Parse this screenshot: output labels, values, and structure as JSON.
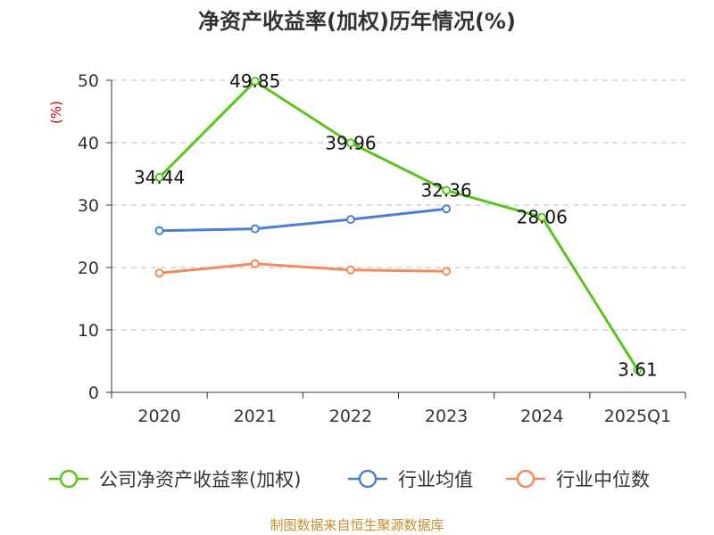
{
  "chart_data": {
    "type": "line",
    "title": "净资产收益率(加权)历年情况(%)",
    "ylabel": "(%)",
    "xlabel": "",
    "categories": [
      "2020",
      "2021",
      "2022",
      "2023",
      "2024",
      "2025Q1"
    ],
    "ylim": [
      0,
      50
    ],
    "yticks": [
      0,
      10,
      20,
      30,
      40,
      50
    ],
    "grid": true,
    "legend_position": "bottom",
    "series": [
      {
        "name": "公司净资产收益率(加权)",
        "color": "#5ac41e",
        "values": [
          34.44,
          49.85,
          39.96,
          32.36,
          28.06,
          3.61
        ],
        "labels": [
          "34.44",
          "49.85",
          "39.96",
          "32.36",
          "28.06",
          "3.61"
        ]
      },
      {
        "name": "行业均值",
        "color": "#4a7fd6",
        "values": [
          25.9,
          26.2,
          27.7,
          29.4,
          null,
          null
        ],
        "labels": []
      },
      {
        "name": "行业中位数",
        "color": "#f28c5a",
        "values": [
          19.1,
          20.6,
          19.6,
          19.4,
          null,
          null
        ],
        "labels": []
      }
    ],
    "source": "制图数据来自恒生聚源数据库"
  }
}
